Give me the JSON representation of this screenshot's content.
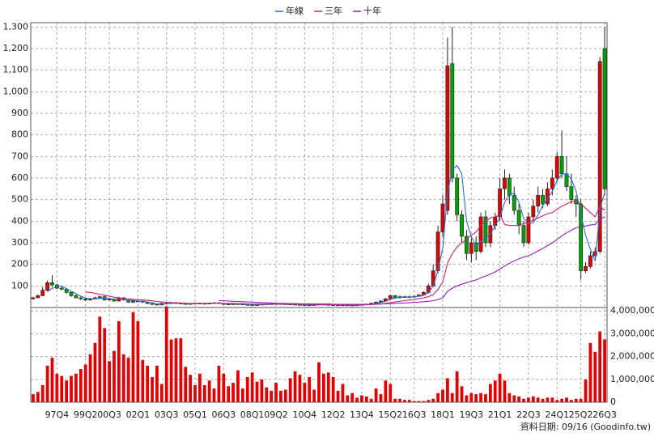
{
  "chart_data": {
    "type": "candlestick",
    "categories": [
      null,
      null,
      null,
      null,
      null,
      "97Q4",
      null,
      null,
      null,
      null,
      null,
      "99Q2",
      null,
      null,
      null,
      null,
      "00Q3",
      null,
      null,
      null,
      null,
      null,
      "02Q1",
      null,
      null,
      null,
      null,
      null,
      "03Q3",
      null,
      null,
      null,
      null,
      null,
      "05Q1",
      null,
      null,
      null,
      null,
      null,
      "06Q3",
      null,
      null,
      null,
      null,
      null,
      "08Q1",
      null,
      null,
      null,
      null,
      "09Q2",
      null,
      null,
      null,
      null,
      null,
      "10Q4",
      null,
      null,
      null,
      null,
      null,
      "12Q2",
      null,
      null,
      null,
      null,
      null,
      "13Q4",
      null,
      null,
      null,
      null,
      null,
      "15Q2",
      null,
      null,
      null,
      null,
      "16Q3",
      null,
      null,
      null,
      null,
      null,
      "18Q1",
      null,
      null,
      null,
      null,
      null,
      "19Q3",
      null,
      null,
      null,
      null,
      null,
      "21Q1",
      null,
      null,
      null,
      null,
      null,
      "22Q3",
      null,
      null,
      null,
      null,
      null,
      "24Q1",
      null,
      null,
      null,
      null,
      "25Q2",
      null,
      null,
      null,
      null,
      "26Q3"
    ],
    "open": [
      40,
      45,
      55,
      80,
      115,
      105,
      90,
      85,
      70,
      55,
      45,
      40,
      35,
      40,
      45,
      50,
      35,
      40,
      30,
      45,
      35,
      25,
      30,
      30,
      25,
      18,
      15,
      12,
      20,
      20,
      22,
      20,
      18,
      17,
      18,
      20,
      19,
      18,
      20,
      22,
      18,
      16,
      15,
      17,
      16,
      14,
      13,
      12,
      13,
      15,
      17,
      16,
      18,
      17,
      16,
      15,
      14,
      13,
      12,
      12,
      13,
      15,
      14,
      13,
      12,
      11,
      12,
      11,
      10,
      12,
      14,
      16,
      20,
      25,
      30,
      40,
      55,
      45,
      50,
      48,
      50,
      52,
      58,
      70,
      100,
      170,
      350,
      450,
      1130,
      600,
      430,
      330,
      250,
      300,
      260,
      420,
      300,
      380,
      420,
      550,
      600,
      520,
      450,
      380,
      300,
      420,
      470,
      520,
      480,
      550,
      600,
      700,
      620,
      560,
      500,
      480,
      170,
      190,
      240,
      260,
      1200
    ],
    "high": [
      50,
      60,
      95,
      125,
      150,
      110,
      100,
      90,
      75,
      60,
      50,
      45,
      45,
      50,
      55,
      55,
      45,
      42,
      50,
      48,
      38,
      35,
      35,
      32,
      28,
      20,
      18,
      22,
      25,
      25,
      25,
      22,
      20,
      20,
      22,
      22,
      21,
      22,
      25,
      24,
      20,
      18,
      19,
      19,
      17,
      15,
      14,
      15,
      17,
      19,
      19,
      20,
      19,
      18,
      17,
      16,
      15,
      14,
      14,
      15,
      17,
      16,
      15,
      14,
      13,
      14,
      13,
      12,
      14,
      16,
      18,
      22,
      28,
      33,
      45,
      60,
      58,
      55,
      55,
      55,
      56,
      62,
      75,
      110,
      200,
      380,
      520,
      1250,
      1300,
      620,
      450,
      360,
      320,
      330,
      440,
      450,
      400,
      440,
      600,
      640,
      620,
      560,
      480,
      400,
      440,
      500,
      560,
      550,
      580,
      640,
      720,
      820,
      700,
      620,
      520,
      500,
      210,
      260,
      280,
      1160,
      1300
    ],
    "low": [
      38,
      43,
      52,
      75,
      95,
      85,
      80,
      65,
      50,
      42,
      35,
      30,
      32,
      38,
      42,
      32,
      32,
      28,
      28,
      32,
      22,
      22,
      26,
      22,
      16,
      12,
      10,
      10,
      17,
      18,
      18,
      16,
      15,
      15,
      16,
      17,
      16,
      16,
      18,
      16,
      15,
      13,
      13,
      14,
      12,
      11,
      10,
      10,
      12,
      14,
      14,
      15,
      15,
      14,
      13,
      12,
      11,
      10,
      10,
      11,
      12,
      12,
      11,
      10,
      9,
      10,
      9,
      8,
      9,
      11,
      13,
      15,
      19,
      24,
      28,
      38,
      40,
      42,
      45,
      44,
      46,
      50,
      55,
      65,
      95,
      160,
      330,
      430,
      580,
      400,
      300,
      220,
      210,
      220,
      250,
      280,
      280,
      360,
      400,
      500,
      480,
      430,
      340,
      280,
      290,
      400,
      440,
      460,
      470,
      520,
      580,
      600,
      540,
      480,
      420,
      130,
      160,
      180,
      230,
      250,
      520
    ],
    "close": [
      45,
      55,
      80,
      115,
      105,
      90,
      85,
      70,
      55,
      45,
      40,
      35,
      40,
      45,
      50,
      35,
      40,
      30,
      45,
      35,
      25,
      30,
      30,
      25,
      18,
      15,
      12,
      20,
      20,
      22,
      20,
      18,
      17,
      18,
      20,
      19,
      18,
      20,
      22,
      18,
      16,
      15,
      17,
      16,
      14,
      13,
      12,
      13,
      15,
      17,
      16,
      18,
      17,
      16,
      15,
      14,
      13,
      12,
      12,
      13,
      15,
      14,
      13,
      12,
      11,
      12,
      11,
      10,
      12,
      14,
      16,
      20,
      25,
      30,
      40,
      55,
      45,
      50,
      48,
      50,
      52,
      58,
      70,
      100,
      170,
      350,
      480,
      1120,
      600,
      430,
      330,
      250,
      300,
      260,
      420,
      300,
      380,
      420,
      550,
      600,
      520,
      450,
      380,
      300,
      420,
      470,
      520,
      480,
      550,
      600,
      700,
      620,
      560,
      500,
      480,
      170,
      190,
      240,
      260,
      1140,
      550
    ],
    "up_color": "#e00000",
    "down_color": "#00a000",
    "series": [
      {
        "name": "年線",
        "color": "#2a6fd0",
        "values": [
          null,
          null,
          null,
          74,
          89,
          97.5,
          99,
          87.5,
          75,
          64,
          52.5,
          44,
          40,
          40,
          42.5,
          42.5,
          41,
          39,
          37.5,
          37.5,
          34,
          34,
          30,
          28,
          26,
          22,
          17,
          16,
          17,
          18.5,
          20.5,
          20,
          19,
          18,
          18,
          19,
          19,
          19,
          20,
          20,
          19,
          18,
          18,
          16,
          15.5,
          15,
          14,
          13.5,
          13,
          14,
          15,
          16.5,
          17,
          17,
          16.5,
          15.5,
          14.5,
          13.5,
          13,
          12.5,
          13,
          13.5,
          14,
          13.5,
          12.5,
          12,
          11.5,
          11,
          11,
          12,
          13,
          15.5,
          19,
          23,
          29,
          37.5,
          44,
          47.5,
          50,
          48,
          50,
          52,
          57,
          70,
          100,
          172,
          275,
          530,
          638,
          658,
          620,
          400,
          328,
          285,
          308,
          320,
          340,
          380,
          418,
          488,
          523,
          530,
          488,
          413,
          388,
          393,
          428,
          473,
          505,
          538,
          588,
          618,
          620,
          595,
          540,
          433,
          335,
          270,
          215,
          458,
          533
        ]
      },
      {
        "name": "三年",
        "color": "#d0206a",
        "values": [
          null,
          null,
          null,
          null,
          null,
          null,
          null,
          null,
          null,
          null,
          null,
          71,
          70,
          66,
          62,
          57,
          52,
          48,
          45,
          42,
          40,
          38,
          37,
          35,
          33,
          31,
          28,
          26,
          24,
          23,
          22,
          21,
          20,
          19,
          19,
          19,
          19,
          19,
          19,
          19,
          19,
          19,
          19,
          18,
          18,
          17,
          16,
          16,
          16,
          16,
          16,
          16,
          16,
          15,
          15,
          15,
          15,
          15,
          15,
          14,
          14,
          14,
          13,
          13,
          13,
          13,
          12,
          12,
          12,
          12,
          13,
          14,
          15,
          16,
          19,
          22,
          26,
          29,
          32,
          35,
          38,
          41,
          45,
          50,
          60,
          84,
          118,
          205,
          250,
          280,
          300,
          315,
          335,
          350,
          380,
          400,
          415,
          420,
          430,
          385,
          380,
          380,
          380,
          390,
          395,
          405,
          415,
          425,
          435,
          440,
          455,
          470,
          480,
          490,
          495,
          480,
          460,
          440,
          420,
          470,
          450
        ]
      },
      {
        "name": "十年",
        "color": "#9020c0",
        "values": [
          null,
          null,
          null,
          null,
          null,
          null,
          null,
          null,
          null,
          null,
          null,
          null,
          null,
          null,
          null,
          null,
          null,
          null,
          null,
          null,
          null,
          null,
          null,
          null,
          null,
          null,
          null,
          null,
          null,
          null,
          null,
          null,
          null,
          null,
          null,
          null,
          null,
          null,
          null,
          32,
          31,
          30,
          29,
          28,
          27,
          26,
          25,
          24,
          23,
          22,
          21,
          20,
          19,
          19,
          18,
          18,
          17,
          17,
          17,
          16,
          16,
          16,
          16,
          15,
          15,
          15,
          15,
          15,
          15,
          15,
          15,
          15,
          16,
          16,
          17,
          18,
          19,
          20,
          21,
          22,
          24,
          25,
          27,
          29,
          32,
          37,
          45,
          75,
          90,
          100,
          108,
          115,
          122,
          128,
          138,
          146,
          155,
          165,
          178,
          192,
          205,
          216,
          226,
          234,
          240,
          250,
          262,
          274,
          287,
          300,
          315,
          332,
          346,
          358,
          370,
          375,
          378,
          382,
          385,
          410,
          420
        ]
      }
    ],
    "ylim": [
      0,
      1320
    ],
    "yticks": [
      100,
      200,
      300,
      400,
      500,
      600,
      700,
      800,
      900,
      {
        "value": 1000,
        "label": "1,000"
      },
      {
        "value": 1100,
        "label": "1,100"
      },
      {
        "value": 1200,
        "label": "1,200"
      },
      {
        "value": 1300,
        "label": "1,300"
      }
    ],
    "volume": [
      350000,
      450000,
      750000,
      1600000,
      1950000,
      1250000,
      1150000,
      950000,
      1150000,
      1250000,
      1450000,
      1650000,
      2100000,
      2600000,
      3750000,
      3250000,
      1800000,
      2250000,
      3550000,
      2100000,
      1950000,
      3950000,
      3550000,
      1850000,
      1600000,
      1100000,
      1600000,
      800000,
      4200000,
      2750000,
      2800000,
      2800000,
      1550000,
      1200000,
      750000,
      1250000,
      750000,
      950000,
      600000,
      1600000,
      1250000,
      700000,
      850000,
      1400000,
      600000,
      1100000,
      1300000,
      900000,
      1000000,
      650000,
      500000,
      850000,
      500000,
      550000,
      1050000,
      1350000,
      1200000,
      850000,
      1100000,
      550000,
      1750000,
      1250000,
      1300000,
      1100000,
      500000,
      800000,
      300000,
      400000,
      200000,
      300000,
      250000,
      150000,
      600000,
      350000,
      950000,
      800000,
      150000,
      150000,
      100000,
      100000,
      50000,
      50000,
      50000,
      100000,
      150000,
      400000,
      550000,
      1050000,
      400000,
      1350000,
      700000,
      300000,
      400000,
      350000,
      400000,
      350000,
      800000,
      950000,
      1250000,
      950000,
      400000,
      300000,
      250000,
      150000,
      200000,
      250000,
      200000,
      150000,
      200000,
      200000,
      100000,
      150000,
      200000,
      100000,
      150000,
      150000,
      1000000,
      2600000,
      2200000,
      3100000,
      2750000
    ],
    "volume_color": "#e00000",
    "y2lim": [
      0,
      4150000
    ],
    "y2ticks": [
      0,
      {
        "value": 1000000,
        "label": "1,000,000"
      },
      {
        "value": 2000000,
        "label": "2,000,000"
      },
      {
        "value": 3000000,
        "label": "3,000,000"
      },
      {
        "value": 4000000,
        "label": "4,000,000"
      }
    ],
    "grid": true,
    "footer": "資料日期: 09/16  (Goodinfo.tw)"
  }
}
